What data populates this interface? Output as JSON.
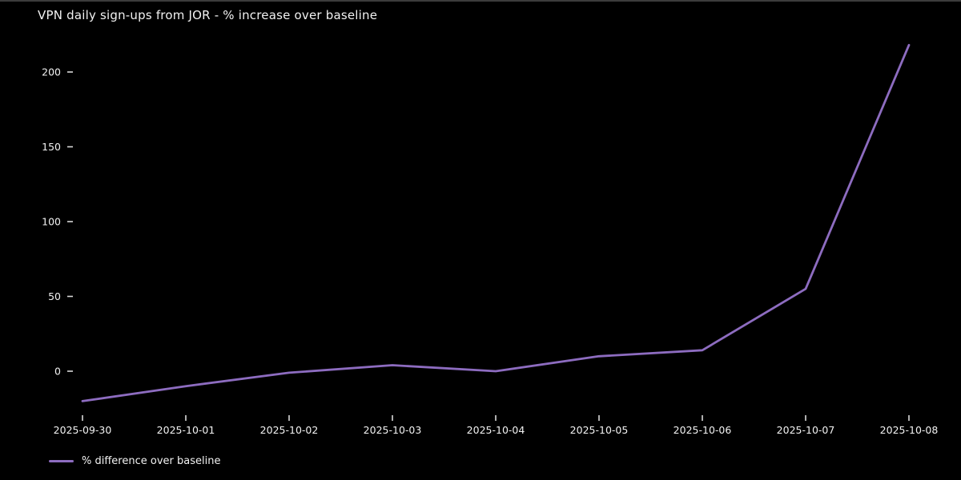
{
  "title": "VPN daily sign-ups from JOR - % increase over baseline",
  "legend": {
    "label": "% difference over baseline"
  },
  "colors": {
    "background": "#000000",
    "text": "#f2f2f2",
    "line": "#8d6cc0",
    "tick": "#d9d9d9"
  },
  "chart_data": {
    "type": "line",
    "title": "VPN daily sign-ups from JOR - % increase over baseline",
    "x": [
      "2025-09-30",
      "2025-10-01",
      "2025-10-02",
      "2025-10-03",
      "2025-10-04",
      "2025-10-05",
      "2025-10-06",
      "2025-10-07",
      "2025-10-08"
    ],
    "series": [
      {
        "name": "% difference over baseline",
        "values": [
          -20,
          -10,
          -1,
          4,
          0,
          10,
          14,
          55,
          218
        ]
      }
    ],
    "xlabel": "",
    "ylabel": "",
    "yticks": [
      0,
      50,
      100,
      150,
      200
    ],
    "ylim": [
      -30,
      225
    ],
    "grid": false,
    "legend_position": "lower-left",
    "background": "black"
  }
}
